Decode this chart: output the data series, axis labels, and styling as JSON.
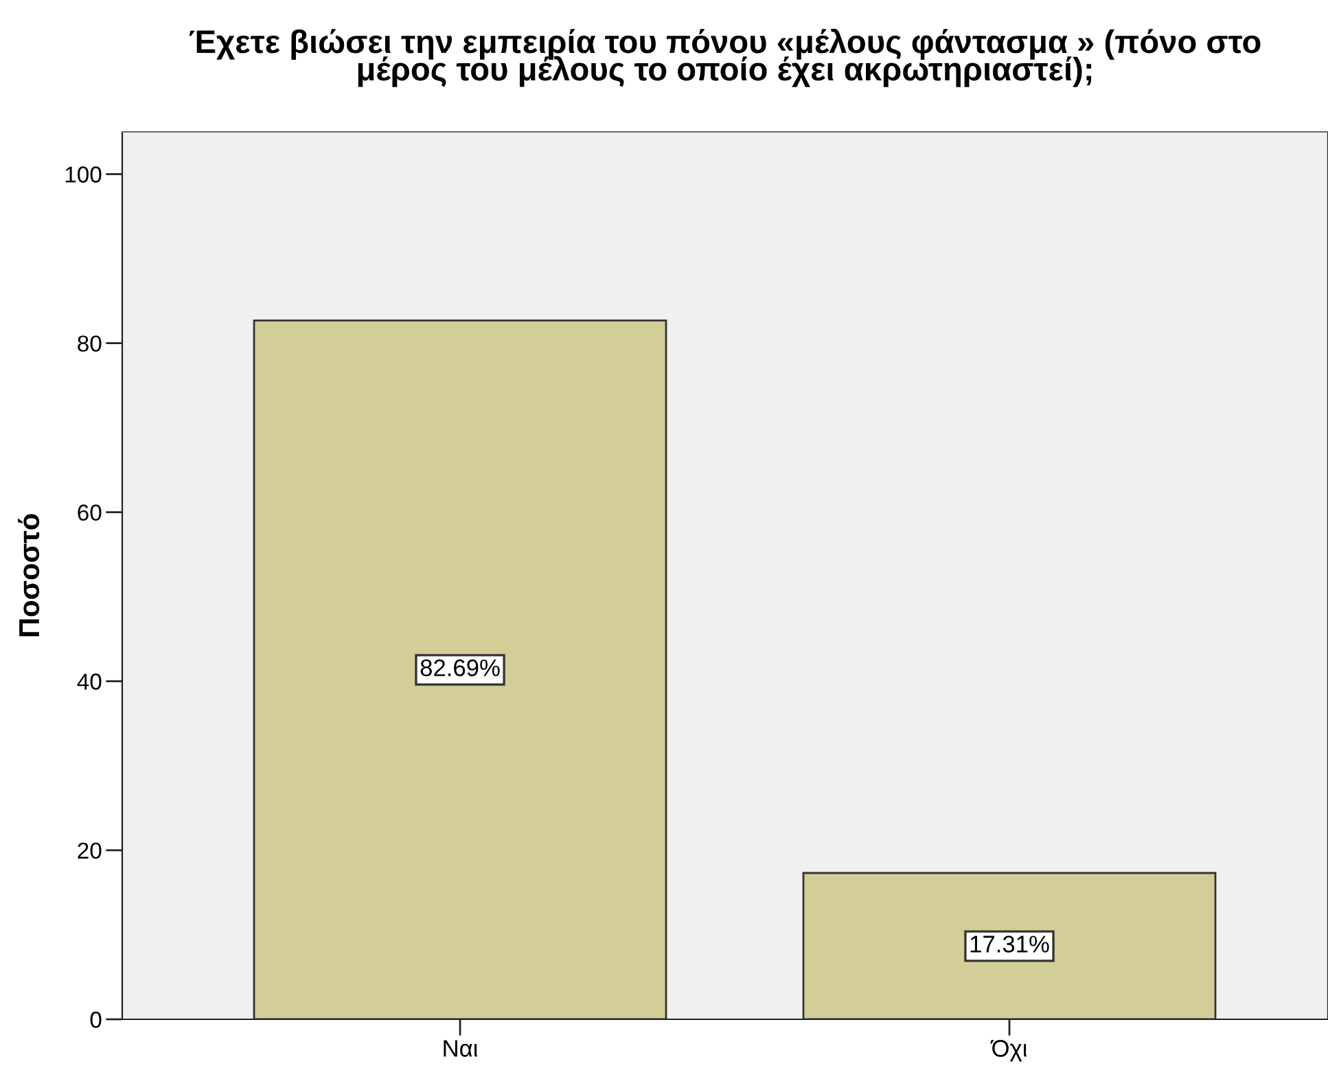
{
  "chart_data": {
    "type": "bar",
    "title": "Έχετε βιώσει την εμπειρία του πόνου «μέλους φάντασμα » (πόνο στο\nμέρος του μέλους το οποίο έχει ακρωτηριαστεί);",
    "ylabel": "Ποσοστό",
    "categories": [
      "Ναι",
      "Όχι"
    ],
    "values": [
      82.69,
      17.31
    ],
    "value_labels": [
      "82.69%",
      "17.31%"
    ],
    "color": "#d3ce97",
    "ylim": [
      0,
      105
    ],
    "yticks": [
      0,
      20,
      40,
      60,
      80,
      100
    ],
    "grid": false,
    "legend": false
  }
}
